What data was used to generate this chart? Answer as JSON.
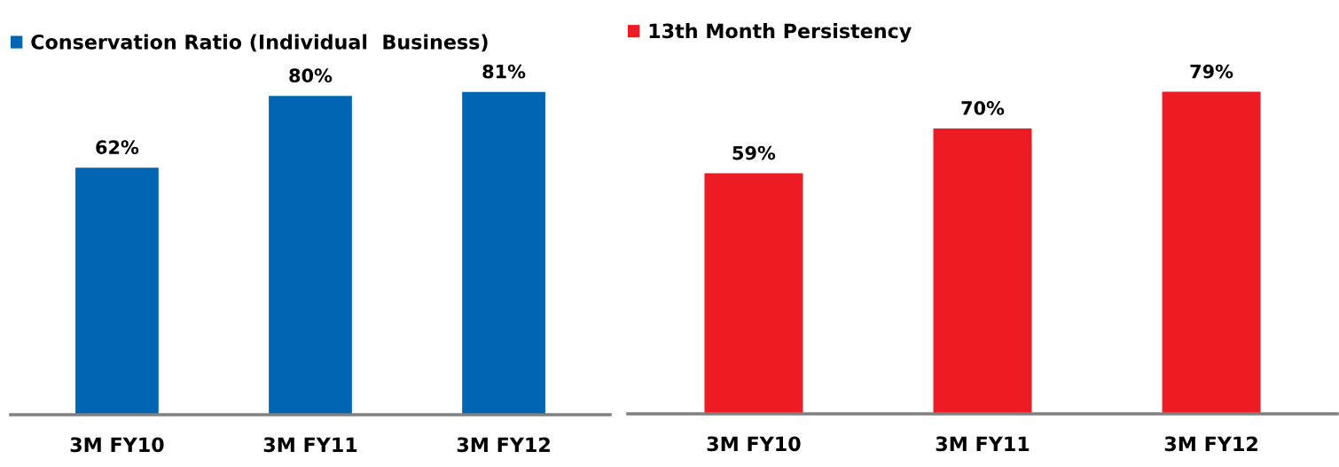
{
  "chart_data": [
    {
      "type": "bar",
      "categories": [
        "3M FY10",
        "3M FY11",
        "3M FY12"
      ],
      "series": [
        {
          "name": "Conservation Ratio (Individual  Business)",
          "color": "#0066b3",
          "values": [
            62,
            80,
            81
          ],
          "value_labels": [
            "62%",
            "80%",
            "81%"
          ]
        }
      ],
      "tick_labels": "x",
      "legend": "top left"
    },
    {
      "type": "bar",
      "categories": [
        "3M FY10",
        "3M FY11",
        "3M FY12"
      ],
      "series": [
        {
          "name": "13th Month Persistency",
          "color": "#ed1c24",
          "values": [
            59,
            70,
            79
          ],
          "value_labels": [
            "59%",
            "70%",
            "79%"
          ]
        }
      ],
      "tick_labels": "x",
      "legend": "top left"
    }
  ]
}
